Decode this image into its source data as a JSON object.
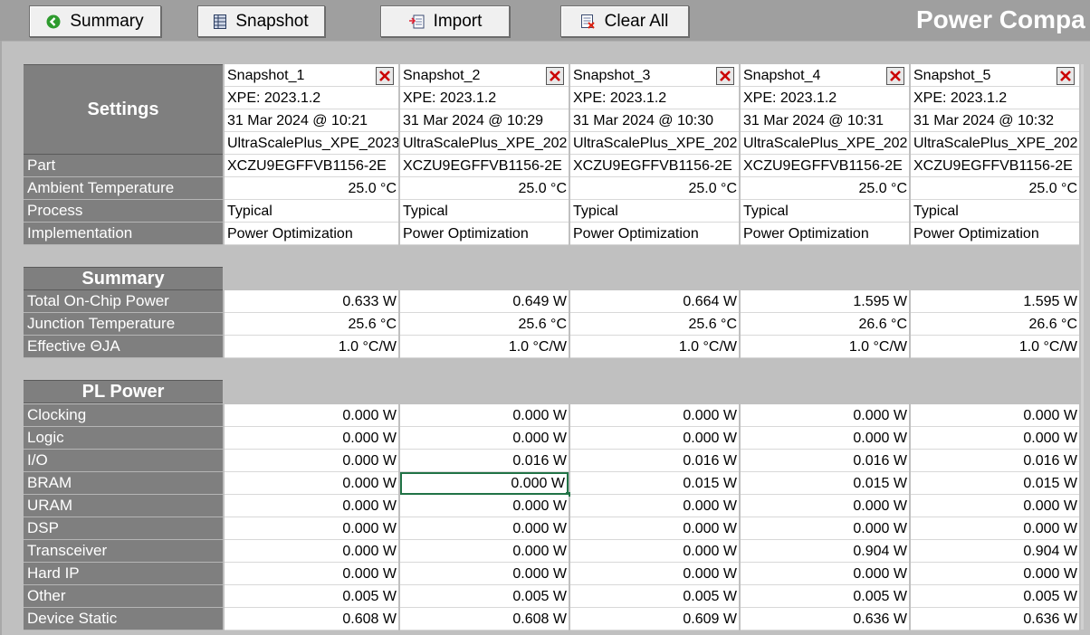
{
  "toolbar": {
    "summary_label": "Summary",
    "snapshot_label": "Snapshot",
    "import_label": "Import",
    "clear_all_label": "Clear All"
  },
  "title": "Power Compa",
  "sections": {
    "settings": "Settings",
    "summary": "Summary",
    "pl_power": "PL Power"
  },
  "row_labels": {
    "part": "Part",
    "ambient": "Ambient Temperature",
    "process": "Process",
    "implementation": "Implementation",
    "total_power": "Total On-Chip Power",
    "junction": "Junction Temperature",
    "theta": "Effective ΘJA",
    "clocking": "Clocking",
    "logic": "Logic",
    "io": "I/O",
    "bram": "BRAM",
    "uram": "URAM",
    "dsp": "DSP",
    "transceiver": "Transceiver",
    "hard_ip": "Hard IP",
    "other": "Other",
    "device_static": "Device Static"
  },
  "snapshots": [
    {
      "name": "Snapshot_1",
      "xpe": "XPE: 2023.1.2",
      "date": "31 Mar 2024 @ 10:21",
      "file": "UltraScalePlus_XPE_2023",
      "part": "XCZU9EGFFVB1156-2E",
      "ambient": "25.0 °C",
      "process": "Typical",
      "impl": "Power Optimization",
      "total": "0.633 W",
      "junction": "25.6 °C",
      "theta": "1.0 °C/W",
      "clocking": "0.000 W",
      "logic": "0.000 W",
      "io": "0.000 W",
      "bram": "0.000 W",
      "uram": "0.000 W",
      "dsp": "0.000 W",
      "transceiver": "0.000 W",
      "hard_ip": "0.000 W",
      "other": "0.005 W",
      "device_static": "0.608 W"
    },
    {
      "name": "Snapshot_2",
      "xpe": "XPE: 2023.1.2",
      "date": "31 Mar 2024 @ 10:29",
      "file": "UltraScalePlus_XPE_202",
      "part": "XCZU9EGFFVB1156-2E",
      "ambient": "25.0 °C",
      "process": "Typical",
      "impl": "Power Optimization",
      "total": "0.649 W",
      "junction": "25.6 °C",
      "theta": "1.0 °C/W",
      "clocking": "0.000 W",
      "logic": "0.000 W",
      "io": "0.016 W",
      "bram": "0.000 W",
      "uram": "0.000 W",
      "dsp": "0.000 W",
      "transceiver": "0.000 W",
      "hard_ip": "0.000 W",
      "other": "0.005 W",
      "device_static": "0.608 W"
    },
    {
      "name": "Snapshot_3",
      "xpe": "XPE: 2023.1.2",
      "date": "31 Mar 2024 @ 10:30",
      "file": "UltraScalePlus_XPE_202",
      "part": "XCZU9EGFFVB1156-2E",
      "ambient": "25.0 °C",
      "process": "Typical",
      "impl": "Power Optimization",
      "total": "0.664 W",
      "junction": "25.6 °C",
      "theta": "1.0 °C/W",
      "clocking": "0.000 W",
      "logic": "0.000 W",
      "io": "0.016 W",
      "bram": "0.015 W",
      "uram": "0.000 W",
      "dsp": "0.000 W",
      "transceiver": "0.000 W",
      "hard_ip": "0.000 W",
      "other": "0.005 W",
      "device_static": "0.609 W"
    },
    {
      "name": "Snapshot_4",
      "xpe": "XPE: 2023.1.2",
      "date": "31 Mar 2024 @ 10:31",
      "file": "UltraScalePlus_XPE_202",
      "part": "XCZU9EGFFVB1156-2E",
      "ambient": "25.0 °C",
      "process": "Typical",
      "impl": "Power Optimization",
      "total": "1.595 W",
      "junction": "26.6 °C",
      "theta": "1.0 °C/W",
      "clocking": "0.000 W",
      "logic": "0.000 W",
      "io": "0.016 W",
      "bram": "0.015 W",
      "uram": "0.000 W",
      "dsp": "0.000 W",
      "transceiver": "0.904 W",
      "hard_ip": "0.000 W",
      "other": "0.005 W",
      "device_static": "0.636 W"
    },
    {
      "name": "Snapshot_5",
      "xpe": "XPE: 2023.1.2",
      "date": "31 Mar 2024 @ 10:32",
      "file": "UltraScalePlus_XPE_202",
      "part": "XCZU9EGFFVB1156-2E",
      "ambient": "25.0 °C",
      "process": "Typical",
      "impl": "Power Optimization",
      "total": "1.595 W",
      "junction": "26.6 °C",
      "theta": "1.0 °C/W",
      "clocking": "0.000 W",
      "logic": "0.000 W",
      "io": "0.016 W",
      "bram": "0.015 W",
      "uram": "0.000 W",
      "dsp": "0.000 W",
      "transceiver": "0.904 W",
      "hard_ip": "0.000 W",
      "other": "0.005 W",
      "device_static": "0.636 W"
    }
  ],
  "selected": {
    "snapshot": 1,
    "row": "bram"
  },
  "colors": {
    "accent_green": "#217346",
    "header_gray": "#7f7f7f",
    "close_red": "#cc0000"
  }
}
